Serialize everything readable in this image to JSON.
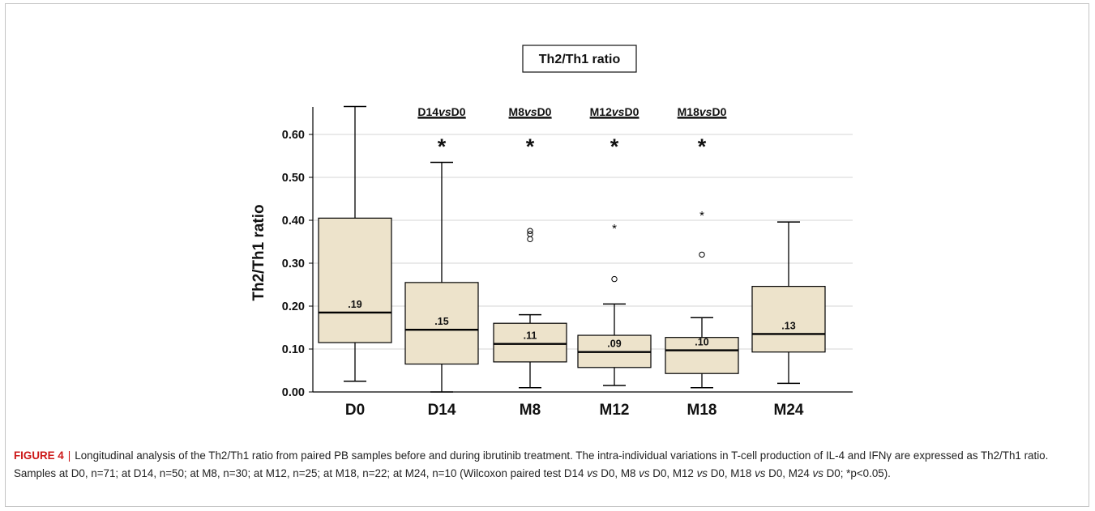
{
  "chart_data": {
    "type": "box",
    "title": "Th2/Th1 ratio",
    "ylabel": "Th2/Th1 ratio",
    "xlabel": "",
    "ylim": [
      0,
      0.66
    ],
    "yticks": [
      "0.00",
      "0.10",
      "0.20",
      "0.30",
      "0.40",
      "0.50",
      "0.60"
    ],
    "grid": true,
    "box_color": "#ede3cb",
    "categories": [
      "D0",
      "D14",
      "M8",
      "M12",
      "M18",
      "M24"
    ],
    "boxes": [
      {
        "category": "D0",
        "whisker_low": 0.025,
        "q1": 0.115,
        "median": 0.185,
        "q3": 0.405,
        "whisker_high": 0.665,
        "median_label": ".19",
        "outliers": [],
        "extremes": []
      },
      {
        "category": "D14",
        "whisker_low": 0.0,
        "q1": 0.065,
        "median": 0.145,
        "q3": 0.255,
        "whisker_high": 0.535,
        "median_label": ".15",
        "outliers": [],
        "extremes": []
      },
      {
        "category": "M8",
        "whisker_low": 0.01,
        "q1": 0.07,
        "median": 0.112,
        "q3": 0.16,
        "whisker_high": 0.18,
        "median_label": ".11",
        "outliers": [
          0.356,
          0.368,
          0.375
        ],
        "extremes": []
      },
      {
        "category": "M12",
        "whisker_low": 0.015,
        "q1": 0.057,
        "median": 0.093,
        "q3": 0.132,
        "whisker_high": 0.205,
        "median_label": ".09",
        "outliers": [
          0.263
        ],
        "extremes": [
          0.385
        ]
      },
      {
        "category": "M18",
        "whisker_low": 0.01,
        "q1": 0.043,
        "median": 0.097,
        "q3": 0.127,
        "whisker_high": 0.173,
        "median_label": ".10",
        "outliers": [
          0.32
        ],
        "extremes": [
          0.415
        ]
      },
      {
        "category": "M24",
        "whisker_low": 0.02,
        "q1": 0.093,
        "median": 0.135,
        "q3": 0.246,
        "whisker_high": 0.396,
        "median_label": ".13",
        "outliers": [],
        "extremes": []
      }
    ],
    "comparisons": [
      {
        "category": "D14",
        "label": "D14",
        "vs": "vs",
        "ref": "D0",
        "marker": "*"
      },
      {
        "category": "M8",
        "label": "M8",
        "vs": "vs",
        "ref": "D0",
        "marker": "*"
      },
      {
        "category": "M12",
        "label": "M12",
        "vs": "vs",
        "ref": "D0",
        "marker": "*"
      },
      {
        "category": "M18",
        "label": "M18",
        "vs": "vs",
        "ref": "D0",
        "marker": "*"
      }
    ]
  },
  "caption": {
    "label": "FIGURE 4",
    "separator": "|",
    "text_1": "Longitudinal analysis of the Th2/Th1 ratio from paired PB samples before and during ibrutinib treatment. The intra-individual variations in T-cell production of IL-4 and IFNγ are expressed as Th2/Th1 ratio. Samples at D0, n=71; at D14, n=50; at M8, n=30; at M12, n=25; at M18, n=22; at M24, n=10 (Wilcoxon paired test D14 ",
    "vs_1": "vs",
    "text_2": " D0, M8 ",
    "vs_2": "vs",
    "text_3": " D0, M12 ",
    "vs_3": "vs",
    "text_4": " D0, M18 ",
    "vs_4": "vs",
    "text_5": " D0, M24 ",
    "vs_5": "vs",
    "text_6": " D0; *p<0.05)."
  }
}
